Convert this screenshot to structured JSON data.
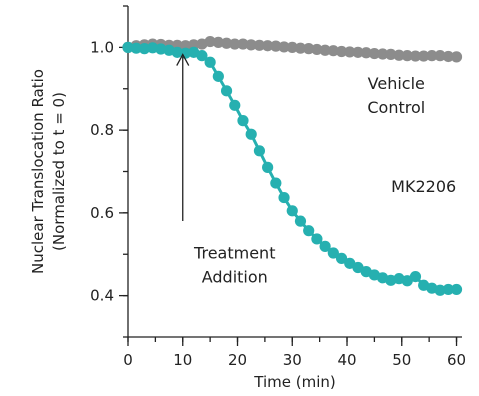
{
  "chart_data": {
    "type": "scatter",
    "xlabel": "Time (min)",
    "ylabel": [
      "Nuclear Translocation Ratio",
      "(Normalized to t = 0)"
    ],
    "xlim": [
      0,
      61
    ],
    "ylim": [
      0.3,
      1.1
    ],
    "x_ticks": [
      0,
      10,
      20,
      30,
      40,
      50,
      60
    ],
    "y_ticks": [
      0.4,
      0.6,
      0.8,
      1.0
    ],
    "x_tick_labels": [
      "0",
      "10",
      "20",
      "30",
      "40",
      "50",
      "60"
    ],
    "y_tick_labels": [
      "0.4",
      "0.6",
      "0.8",
      "1.0"
    ],
    "grid": false,
    "legend": "none",
    "series": [
      {
        "name": "Vehicle Control",
        "color": "#8c8c8c",
        "x": [
          0,
          1.5,
          3,
          4.5,
          6,
          7.5,
          9,
          10.5,
          12,
          13.5,
          15,
          16.5,
          18,
          19.5,
          21,
          22.5,
          24,
          25.5,
          27,
          28.5,
          30,
          31.5,
          33,
          34.5,
          36,
          37.5,
          39,
          40.5,
          42,
          43.5,
          45,
          46.5,
          48,
          49.5,
          51,
          52.5,
          54,
          55.5,
          57,
          58.5,
          60
        ],
        "y": [
          1.0,
          1.004,
          1.006,
          1.008,
          1.007,
          1.005,
          1.005,
          1.004,
          1.006,
          1.008,
          1.014,
          1.012,
          1.01,
          1.008,
          1.008,
          1.006,
          1.005,
          1.004,
          1.003,
          1.001,
          1.0,
          0.998,
          0.997,
          0.995,
          0.993,
          0.992,
          0.99,
          0.989,
          0.988,
          0.987,
          0.985,
          0.984,
          0.983,
          0.981,
          0.98,
          0.979,
          0.979,
          0.98,
          0.98,
          0.978,
          0.977
        ]
      },
      {
        "name": "MK2206",
        "color": "#26b0b0",
        "x": [
          0,
          1.5,
          3,
          4.5,
          6,
          7.5,
          9,
          10.5,
          12,
          13.5,
          15,
          16.5,
          18,
          19.5,
          21,
          22.5,
          24,
          25.5,
          27,
          28.5,
          30,
          31.5,
          33,
          34.5,
          36,
          37.5,
          39,
          40.5,
          42,
          43.5,
          45,
          46.5,
          48,
          49.5,
          51,
          52.5,
          54,
          55.5,
          57,
          58.5,
          60
        ],
        "y": [
          1.0,
          0.998,
          0.997,
          0.999,
          0.996,
          0.993,
          0.988,
          0.986,
          0.988,
          0.98,
          0.964,
          0.93,
          0.895,
          0.86,
          0.823,
          0.79,
          0.75,
          0.71,
          0.672,
          0.637,
          0.605,
          0.58,
          0.557,
          0.537,
          0.519,
          0.503,
          0.49,
          0.478,
          0.468,
          0.458,
          0.45,
          0.443,
          0.437,
          0.441,
          0.436,
          0.446,
          0.425,
          0.418,
          0.413,
          0.415,
          0.415
        ]
      }
    ],
    "annotations": [
      {
        "text": [
          "Vehicle",
          "Control"
        ],
        "x": 49,
        "y": 0.9
      },
      {
        "text": [
          "MK2206"
        ],
        "x": 54,
        "y": 0.65
      },
      {
        "text": [
          "Treatment",
          "Addition"
        ],
        "x": 19.5,
        "y": 0.49,
        "arrow_to": {
          "x": 10,
          "y": 0.99
        }
      }
    ]
  }
}
